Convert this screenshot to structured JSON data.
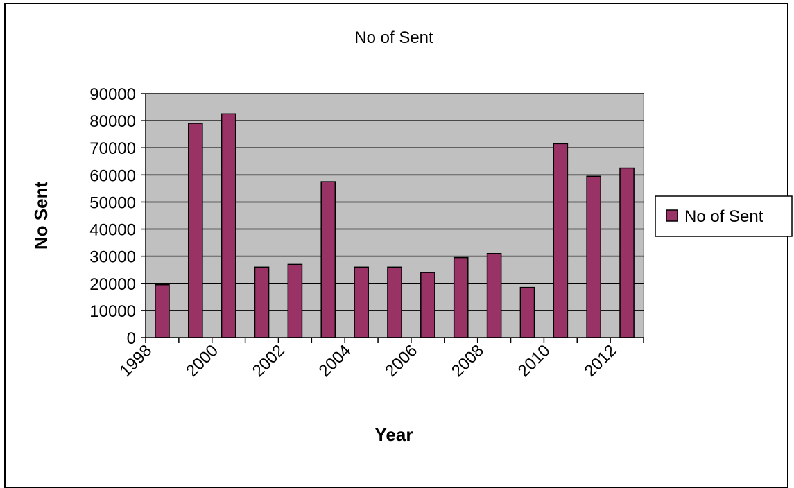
{
  "chart_data": {
    "type": "bar",
    "title": "No of Sent",
    "xlabel": "Year",
    "ylabel": "No Sent",
    "categories": [
      "1998",
      "1999",
      "2000",
      "2001",
      "2002",
      "2003",
      "2004",
      "2005",
      "2006",
      "2007",
      "2008",
      "2009",
      "2010",
      "2011",
      "2012"
    ],
    "x_tick_labels": [
      "1998",
      "2000",
      "2002",
      "2004",
      "2006",
      "2008",
      "2010",
      "2012"
    ],
    "series": [
      {
        "name": "No of Sent",
        "color": "#993366",
        "values": [
          19500,
          79000,
          82500,
          26000,
          27000,
          57500,
          26000,
          26000,
          24000,
          29500,
          31000,
          18500,
          71500,
          59500,
          62500
        ]
      }
    ],
    "ylim": [
      0,
      90000
    ],
    "y_ticks": [
      0,
      10000,
      20000,
      30000,
      40000,
      50000,
      60000,
      70000,
      80000,
      90000
    ],
    "grid": true,
    "plot_background": "#c0c0c0",
    "legend": {
      "position": "right",
      "entries": [
        "No of Sent"
      ]
    }
  }
}
